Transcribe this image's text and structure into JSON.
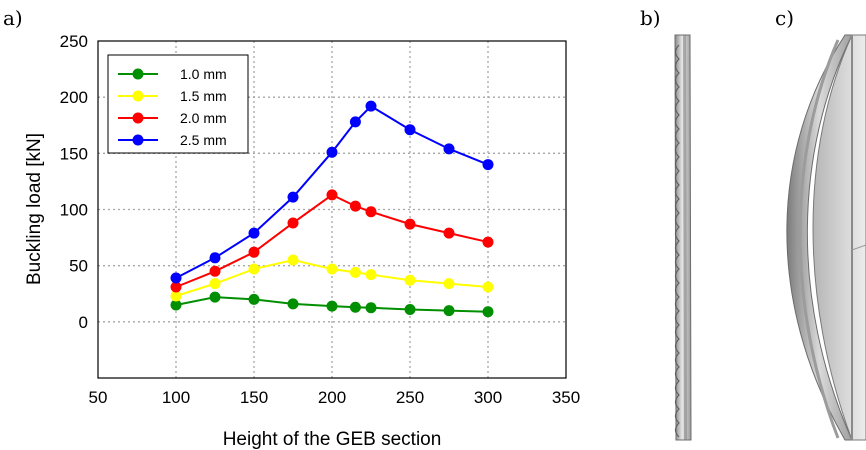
{
  "panel_labels": {
    "a": "a)",
    "b": "b)",
    "c": "c)"
  },
  "chart_data": {
    "type": "line",
    "xlabel": "Height of the GEB section",
    "ylabel": "Buckling load [kN]",
    "xlim": [
      50,
      350
    ],
    "ylim": [
      -50,
      250
    ],
    "xticks": [
      50,
      100,
      150,
      200,
      250,
      300,
      350
    ],
    "yticks": [
      0,
      50,
      100,
      150,
      200,
      250
    ],
    "grid": true,
    "legend_position": "top-left",
    "series": [
      {
        "name": "1.0 mm",
        "color": "#008f00",
        "x": [
          100,
          125,
          150,
          175,
          200,
          215,
          225,
          250,
          275,
          300
        ],
        "y": [
          15,
          22,
          20,
          16,
          14,
          13,
          12.5,
          11,
          10,
          9
        ]
      },
      {
        "name": "1.5 mm",
        "color": "#ffff00",
        "x": [
          100,
          125,
          150,
          175,
          200,
          215,
          225,
          250,
          275,
          300
        ],
        "y": [
          23,
          34,
          47,
          55,
          47,
          44,
          42,
          37,
          34,
          31
        ]
      },
      {
        "name": "2.0 mm",
        "color": "#ff0000",
        "x": [
          100,
          125,
          150,
          175,
          200,
          215,
          225,
          250,
          275,
          300
        ],
        "y": [
          31,
          45,
          62,
          88,
          113,
          103,
          98,
          87,
          79,
          71
        ]
      },
      {
        "name": "2.5 mm",
        "color": "#0000ff",
        "x": [
          100,
          125,
          150,
          175,
          200,
          215,
          225,
          250,
          275,
          300
        ],
        "y": [
          39,
          57,
          79,
          111,
          151,
          178,
          192,
          171,
          154,
          140
        ]
      }
    ]
  }
}
